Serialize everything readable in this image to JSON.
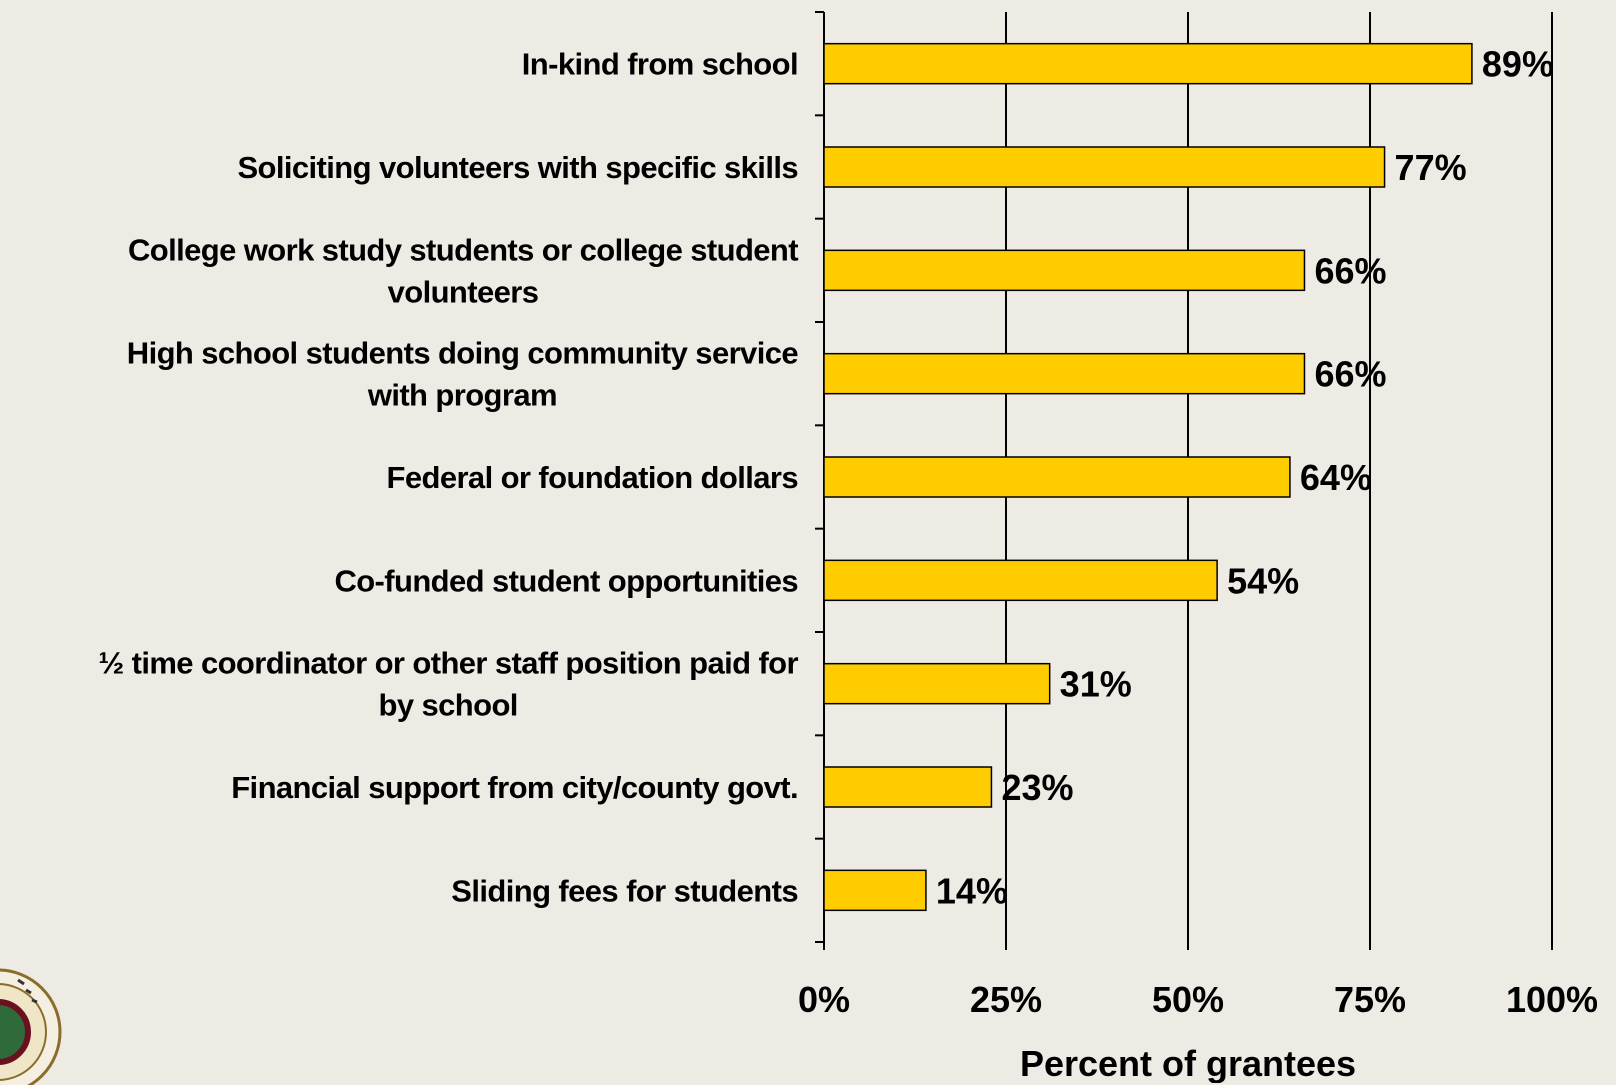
{
  "chart_data": {
    "type": "bar",
    "orientation": "horizontal",
    "categories": [
      "In-kind from school",
      "Soliciting volunteers with specific skills",
      "College work study students or college student volunteers",
      "High school students doing community service with program",
      "Federal or foundation dollars",
      "Co-funded student opportunities",
      "½ time coordinator or other staff position paid for by school",
      "Financial support from city/county govt.",
      "Sliding fees for students"
    ],
    "category_lines": [
      [
        "In-kind from school"
      ],
      [
        "Soliciting volunteers with specific skills"
      ],
      [
        "College work study students or college student",
        "volunteers"
      ],
      [
        "High school students doing community service",
        "with program"
      ],
      [
        "Federal or foundation dollars"
      ],
      [
        "Co-funded student opportunities"
      ],
      [
        "½ time coordinator or other staff position paid for",
        "by school"
      ],
      [
        "Financial support from city/county govt."
      ],
      [
        "Sliding fees for students"
      ]
    ],
    "values": [
      89,
      77,
      66,
      66,
      64,
      54,
      31,
      23,
      14
    ],
    "value_labels": [
      "89%",
      "77%",
      "66%",
      "66%",
      "64%",
      "54%",
      "31%",
      "23%",
      "14%"
    ],
    "xlabel": "Percent of grantees",
    "xlim": [
      0,
      100
    ],
    "xticks": [
      0,
      25,
      50,
      75,
      100
    ],
    "xtick_labels": [
      "0%",
      "25%",
      "50%",
      "75%",
      "100%"
    ],
    "grid": true,
    "bar_color": "#ffcc00",
    "background_color": "#eeebe5"
  }
}
